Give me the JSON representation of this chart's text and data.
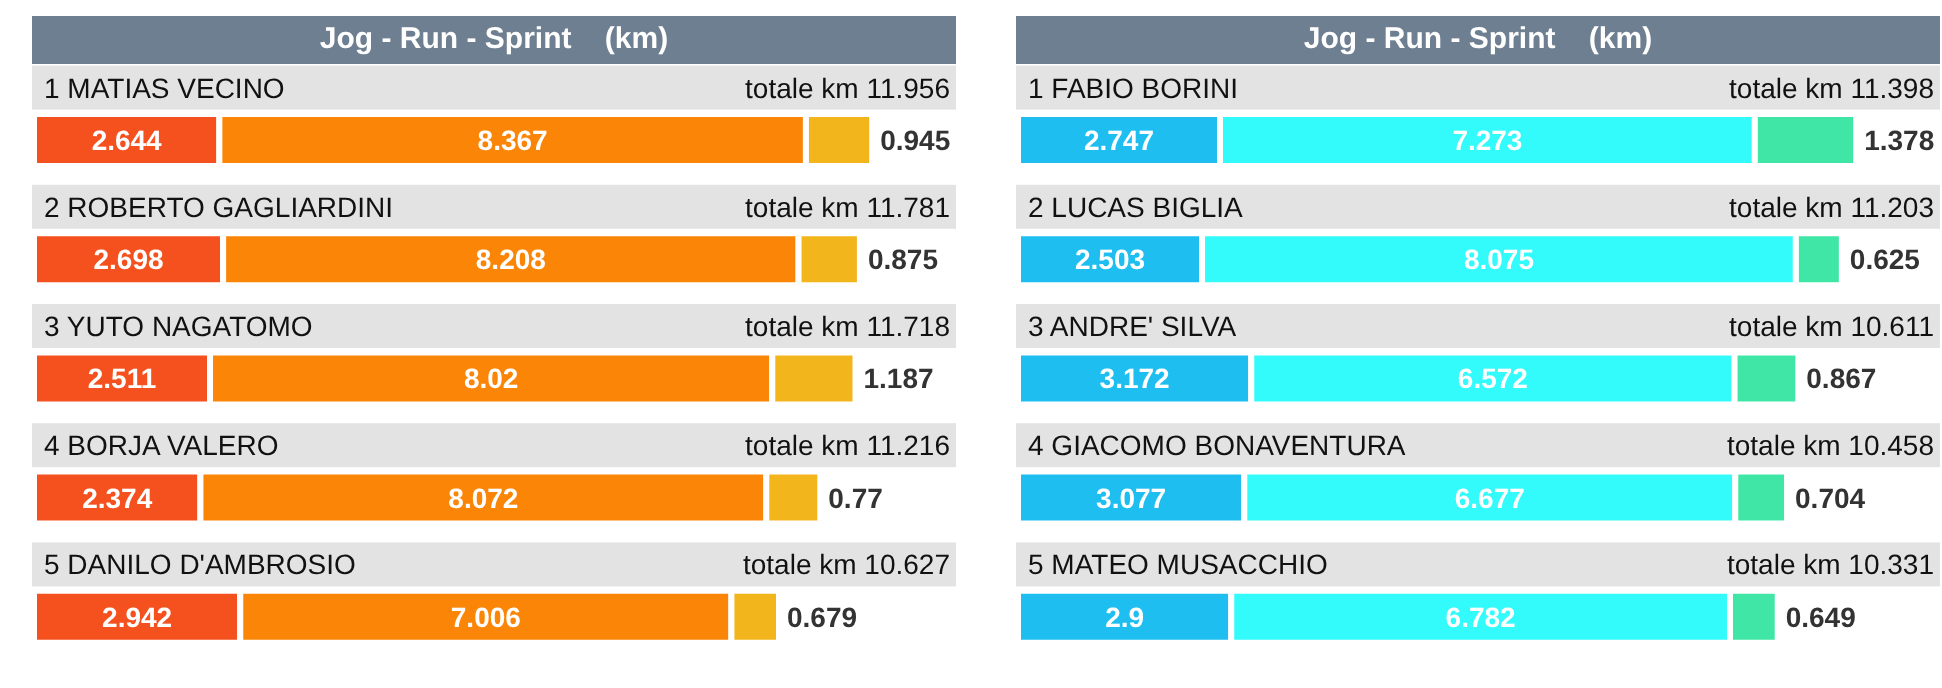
{
  "chart_data": [
    {
      "type": "bar",
      "orientation": "horizontal",
      "stacked": true,
      "title": "Jog - Run - Sprint    (km)",
      "data_labels": true,
      "categories": [
        "1 MATIAS VECINO",
        "2 ROBERTO GAGLIARDINI",
        "3 YUTO NAGATOMO",
        "4 BORJA VALERO",
        "5 DANILO D'AMBROSIO"
      ],
      "totals": [
        "totale km 11.956",
        "totale km 11.781",
        "totale km 11.718",
        "totale km 11.216",
        "totale km 10.627"
      ],
      "series": [
        {
          "color": "#f4511e",
          "values": [
            2.644,
            2.698,
            2.511,
            2.374,
            2.942
          ]
        },
        {
          "color": "#fb8506",
          "values": [
            8.367,
            8.208,
            8.02,
            8.072,
            7.006
          ]
        },
        {
          "color": "#f2b51c",
          "values": [
            0.945,
            0.875,
            1.187,
            0.77,
            0.679
          ]
        }
      ]
    },
    {
      "type": "bar",
      "orientation": "horizontal",
      "stacked": true,
      "title": "Jog - Run - Sprint    (km)",
      "data_labels": true,
      "categories": [
        "1 FABIO BORINI",
        "2 LUCAS BIGLIA",
        "3 ANDRE' SILVA",
        "4 GIACOMO BONAVENTURA",
        "5 MATEO MUSACCHIO"
      ],
      "totals": [
        "totale km 11.398",
        "totale km 11.203",
        "totale km 10.611",
        "totale km 10.458",
        "totale km 10.331"
      ],
      "series": [
        {
          "color": "#1ebff0",
          "values": [
            2.747,
            2.503,
            3.172,
            3.077,
            2.9
          ]
        },
        {
          "color": "#33fbfb",
          "values": [
            7.273,
            8.075,
            6.572,
            6.677,
            6.782
          ]
        },
        {
          "color": "#40e6a6",
          "values": [
            1.378,
            0.625,
            0.867,
            0.704,
            0.649
          ]
        }
      ]
    }
  ]
}
